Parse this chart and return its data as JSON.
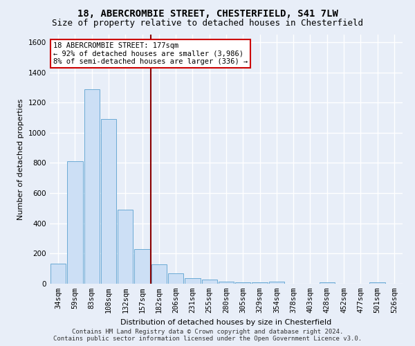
{
  "title_line1": "18, ABERCROMBIE STREET, CHESTERFIELD, S41 7LW",
  "title_line2": "Size of property relative to detached houses in Chesterfield",
  "xlabel": "Distribution of detached houses by size in Chesterfield",
  "ylabel": "Number of detached properties",
  "bar_color": "#ccdff5",
  "bar_edge_color": "#6aaad4",
  "bins": [
    "34sqm",
    "59sqm",
    "83sqm",
    "108sqm",
    "132sqm",
    "157sqm",
    "182sqm",
    "206sqm",
    "231sqm",
    "255sqm",
    "280sqm",
    "305sqm",
    "329sqm",
    "354sqm",
    "378sqm",
    "403sqm",
    "428sqm",
    "452sqm",
    "477sqm",
    "501sqm",
    "526sqm"
  ],
  "values": [
    135,
    810,
    1290,
    1090,
    490,
    230,
    130,
    68,
    37,
    27,
    14,
    7,
    7,
    14,
    0,
    0,
    7,
    0,
    0,
    7,
    0
  ],
  "ylim": [
    0,
    1650
  ],
  "yticks": [
    0,
    200,
    400,
    600,
    800,
    1000,
    1200,
    1400,
    1600
  ],
  "vline_x": 5.5,
  "vline_color": "#8b0000",
  "annotation_text": "18 ABERCROMBIE STREET: 177sqm\n← 92% of detached houses are smaller (3,986)\n8% of semi-detached houses are larger (336) →",
  "annotation_box_color": "#ffffff",
  "annotation_box_edge": "#cc0000",
  "footnote1": "Contains HM Land Registry data © Crown copyright and database right 2024.",
  "footnote2": "Contains public sector information licensed under the Open Government Licence v3.0.",
  "background_color": "#e8eef8",
  "plot_background": "#e8eef8",
  "grid_color": "#ffffff",
  "title_fontsize": 10,
  "subtitle_fontsize": 9,
  "axis_label_fontsize": 8,
  "tick_fontsize": 7.5,
  "annotation_fontsize": 7.5,
  "footnote_fontsize": 6.5
}
